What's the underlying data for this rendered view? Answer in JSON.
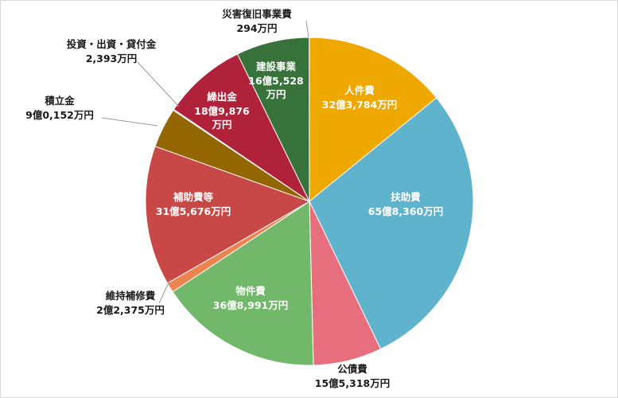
{
  "chart_data": {
    "type": "pie",
    "start_angle_deg": 0,
    "direction": "clockwise",
    "slices": [
      {
        "name": "人件費",
        "value_text": "32億3,784万円",
        "value": 323784,
        "color": "#EFA800",
        "label_inside": true,
        "text_color": "#ffffff"
      },
      {
        "name": "扶助費",
        "value_text": "65億8,360万円",
        "value": 658360,
        "color": "#60B3CC",
        "label_inside": true,
        "text_color": "#ffffff"
      },
      {
        "name": "公債費",
        "value_text": "15億5,318万円",
        "value": 155318,
        "color": "#E66E7D",
        "label_inside": false,
        "text_color": "#1a1a1a"
      },
      {
        "name": "物件費",
        "value_text": "36億8,991万円",
        "value": 368991,
        "color": "#72B86A",
        "label_inside": true,
        "text_color": "#ffffff"
      },
      {
        "name": "維持補修費",
        "value_text": "2億2,375万円",
        "value": 22375,
        "color": "#EC8450",
        "label_inside": false,
        "text_color": "#1a1a1a"
      },
      {
        "name": "補助費等",
        "value_text": "31億5,676万円",
        "value": 315676,
        "color": "#C84848",
        "label_inside": true,
        "text_color": "#ffffff"
      },
      {
        "name": "積立金",
        "value_text": "9億0,152万円",
        "value": 90152,
        "color": "#946600",
        "label_inside": false,
        "text_color": "#1a1a1a"
      },
      {
        "name": "投資・出資・貸付金",
        "value_text": "2,393万円",
        "value": 2393,
        "color": "#6A9AD4",
        "label_inside": false,
        "text_color": "#1a1a1a"
      },
      {
        "name": "繰出金",
        "value_text": "18億9,876万円",
        "value": 189876,
        "color": "#B0213A",
        "label_inside": true,
        "text_color": "#ffffff"
      },
      {
        "name": "建設事業",
        "value_text": "16億5,528万円",
        "value": 165528,
        "color": "#37723A",
        "label_inside": true,
        "text_color": "#ffffff"
      },
      {
        "name": "災害復旧事業費",
        "value_text": "294万円",
        "value": 294,
        "color": "#9CC3E6",
        "label_inside": false,
        "text_color": "#1a1a1a"
      }
    ]
  }
}
